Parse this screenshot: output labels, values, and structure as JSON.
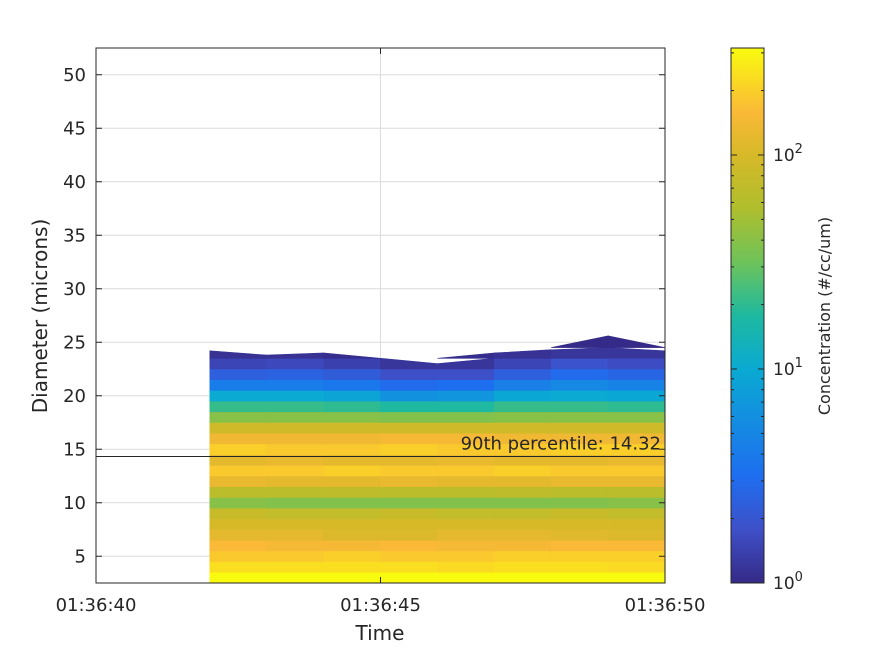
{
  "chart_data": {
    "type": "heatmap",
    "title": "",
    "xlabel": "Time",
    "ylabel": "Diameter (microns)",
    "x_ticks": [
      "01:36:40",
      "01:36:45",
      "01:36:50"
    ],
    "xlim": [
      "01:36:40",
      "01:36:50"
    ],
    "y_ticks": [
      5,
      10,
      15,
      20,
      25,
      30,
      35,
      40,
      45,
      50
    ],
    "ylim": [
      2.5,
      52.5
    ],
    "grid": true,
    "x_seconds": [
      42,
      43,
      44,
      45,
      46,
      47,
      48,
      49,
      50
    ],
    "top_edge_diameter": [
      24.2,
      23.8,
      24.0,
      23.5,
      23.0,
      24.0,
      24.3,
      25.6,
      24.2
    ],
    "diameter_bins": [
      3,
      4,
      5,
      6,
      7,
      8,
      9,
      10,
      11,
      12,
      13,
      14,
      15,
      16,
      17,
      18,
      19,
      20,
      21,
      22,
      23,
      24,
      25
    ],
    "concentration_log10": [
      [
        2.5,
        2.5,
        2.5,
        2.5,
        2.5,
        2.5,
        2.5,
        2.5,
        2.5
      ],
      [
        2.35,
        2.4,
        2.35,
        2.4,
        2.35,
        2.35,
        2.4,
        2.35,
        2.35
      ],
      [
        2.3,
        2.25,
        2.3,
        2.3,
        2.25,
        2.3,
        2.3,
        2.3,
        2.3
      ],
      [
        2.2,
        2.2,
        2.15,
        2.2,
        2.2,
        2.15,
        2.2,
        2.2,
        2.2
      ],
      [
        2.05,
        2.1,
        2.05,
        2.0,
        2.05,
        2.1,
        2.05,
        2.05,
        2.0
      ],
      [
        2.0,
        2.0,
        2.0,
        2.0,
        2.0,
        2.0,
        2.0,
        2.0,
        2.0
      ],
      [
        1.9,
        1.9,
        1.85,
        1.9,
        1.9,
        1.85,
        1.9,
        1.9,
        1.85
      ],
      [
        1.6,
        1.6,
        1.55,
        1.6,
        1.55,
        1.6,
        1.55,
        1.6,
        1.6
      ],
      [
        1.85,
        1.8,
        1.85,
        1.85,
        1.8,
        1.85,
        1.85,
        1.8,
        1.85
      ],
      [
        2.1,
        2.1,
        2.05,
        2.1,
        2.1,
        2.05,
        2.1,
        2.1,
        2.1
      ],
      [
        2.3,
        2.25,
        2.3,
        2.3,
        2.25,
        2.3,
        2.3,
        2.25,
        2.3
      ],
      [
        2.05,
        2.1,
        2.1,
        2.05,
        2.1,
        2.1,
        2.05,
        2.1,
        2.1
      ],
      [
        2.3,
        2.3,
        2.25,
        2.3,
        2.3,
        2.25,
        2.3,
        2.3,
        2.3
      ],
      [
        2.15,
        2.15,
        2.15,
        2.15,
        2.2,
        2.15,
        2.15,
        2.15,
        2.15
      ],
      [
        1.95,
        1.95,
        1.95,
        1.95,
        1.95,
        1.95,
        1.95,
        1.95,
        1.95
      ],
      [
        1.6,
        1.6,
        1.6,
        1.6,
        1.55,
        1.6,
        1.6,
        1.6,
        1.6
      ],
      [
        1.3,
        1.35,
        1.3,
        1.3,
        1.2,
        1.3,
        1.35,
        1.3,
        1.3
      ],
      [
        1.0,
        1.0,
        1.0,
        0.9,
        0.7,
        0.95,
        1.0,
        1.0,
        0.95
      ],
      [
        0.6,
        0.65,
        0.6,
        0.55,
        0.4,
        0.6,
        0.7,
        0.75,
        0.6
      ],
      [
        0.35,
        0.4,
        0.4,
        0.3,
        0.2,
        0.3,
        0.45,
        0.5,
        0.35
      ],
      [
        0.15,
        0.2,
        0.2,
        0.1,
        0.05,
        0.1,
        0.25,
        0.3,
        0.15
      ],
      [
        0.05,
        0.05,
        0.05,
        0.0,
        0.0,
        0.05,
        0.05,
        0.1,
        0.05
      ],
      [
        0.0,
        0.0,
        0.0,
        0.0,
        0.0,
        0.0,
        0.0,
        0.0,
        0.0
      ]
    ],
    "colorbar": {
      "label": "Concentration (#/cc/um)",
      "scale": "log",
      "range_log10": [
        0,
        2.5
      ],
      "ticks": [
        {
          "log10": 0,
          "base": "10",
          "exp": "0"
        },
        {
          "log10": 1,
          "base": "10",
          "exp": "1"
        },
        {
          "log10": 2,
          "base": "10",
          "exp": "2"
        }
      ],
      "colormap": "parula"
    },
    "annotation": {
      "text": "90th percentile: 14.32",
      "value": 14.32
    }
  }
}
